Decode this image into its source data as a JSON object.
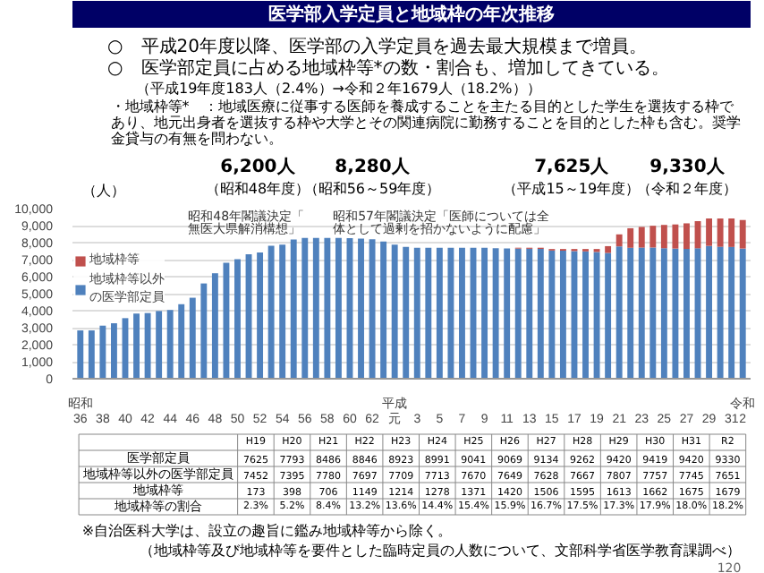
{
  "chart_data": {
    "type": "bar",
    "stacked": true,
    "title": "医学部入学定員と地域枠の年次推移",
    "ylabel": "（人）",
    "categories": [
      "36",
      null,
      "38",
      null,
      "40",
      null,
      "42",
      null,
      "44",
      null,
      "46",
      null,
      "48",
      null,
      "50",
      null,
      "52",
      null,
      "54",
      null,
      "56",
      null,
      "58",
      null,
      "60",
      null,
      "62",
      null,
      "元",
      null,
      "3",
      null,
      "5",
      null,
      "7",
      null,
      "9",
      null,
      "11",
      null,
      "13",
      null,
      "15",
      null,
      "17",
      null,
      "19",
      null,
      "21",
      null,
      "23",
      null,
      "25",
      null,
      "27",
      null,
      "29",
      null,
      "31",
      "2"
    ],
    "series": [
      {
        "name": "地域枠等以外の医学部定員",
        "color": "#4f81bd",
        "values": [
          2840,
          2840,
          3120,
          3260,
          3560,
          3830,
          3860,
          3980,
          4040,
          4380,
          4760,
          5600,
          6200,
          6820,
          7020,
          7320,
          7420,
          7820,
          7880,
          8180,
          8280,
          8280,
          8280,
          8280,
          8260,
          8240,
          8200,
          8070,
          7880,
          7750,
          7700,
          7700,
          7700,
          7700,
          7700,
          7700,
          7700,
          7670,
          7660,
          7650,
          7640,
          7630,
          7535,
          7525,
          7505,
          7485,
          7452,
          7395,
          7780,
          7697,
          7709,
          7713,
          7670,
          7649,
          7628,
          7667,
          7807,
          7757,
          7745,
          7651
        ]
      },
      {
        "name": "地域枠等",
        "color": "#c0504d",
        "values": [
          0,
          0,
          0,
          0,
          0,
          0,
          0,
          0,
          0,
          0,
          0,
          0,
          0,
          0,
          0,
          0,
          0,
          0,
          0,
          0,
          0,
          0,
          0,
          0,
          0,
          0,
          0,
          0,
          0,
          0,
          0,
          0,
          0,
          0,
          0,
          0,
          0,
          null,
          null,
          50,
          60,
          70,
          90,
          100,
          120,
          140,
          173,
          398,
          706,
          1149,
          1214,
          1278,
          1371,
          1420,
          1506,
          1595,
          1613,
          1662,
          1675,
          1679
        ]
      }
    ],
    "ylim": [
      0,
      10000
    ],
    "yticks": [
      0,
      {
        "value": 1000,
        "label": "1,000"
      },
      {
        "value": 2000,
        "label": "2,000"
      },
      {
        "value": 3000,
        "label": "3,000"
      },
      {
        "value": 4000,
        "label": "4,000"
      },
      {
        "value": 5000,
        "label": "5,000"
      },
      {
        "value": 6000,
        "label": "6,000"
      },
      {
        "value": 7000,
        "label": "7,000"
      },
      {
        "value": 8000,
        "label": "8,000"
      },
      {
        "value": 9000,
        "label": "9,000"
      },
      {
        "value": 10000,
        "label": "10,000"
      }
    ],
    "grid": "y",
    "legend": "left",
    "annotations": [
      "○　平成20年度以降、医学部の入学定員を過去最大規模まで増員。",
      "○　医学部定員に占める地域枠等*の数・割合も、増加してきている。",
      "（平成19年度183人（2.4%）→令和２年1679人（18.2%））",
      "・地域枠等*　：地域医療に従事する医師を養成することを主たる目的とした学生を選抜する枠であり、地元出身者を選抜する枠や大学とその関連病院に勤務することを目的とした枠も含む。奨学金貸与の有無を問わない。",
      "昭和48年閣議決定「無医大県解消構想」",
      "昭和57年閣議決定「医師については全体として過剰を招かないように配慮」",
      "6,200人",
      "（昭和48年度）",
      "8,280人",
      "（昭和56～59年度）",
      "7,625人",
      "（平成15～19年度）",
      "9,330人",
      "（令和２年度）",
      "昭和",
      "平成",
      "令和",
      "医学部定員",
      "地域枠等以外の医学部定員",
      "地域枠等",
      "地域枠等の割合",
      "H19",
      "H20",
      "H21",
      "H22",
      "H23",
      "H24",
      "H25",
      "H26",
      "H27",
      "H28",
      "H29",
      "H30",
      "H31",
      "R2",
      "7625",
      "7793",
      "8486",
      "8846",
      "8923",
      "8991",
      "9041",
      "9069",
      "9134",
      "9262",
      "9420",
      "9419",
      "9420",
      "9330",
      "7452",
      "7395",
      "7780",
      "7697",
      "7709",
      "7713",
      "7670",
      "7649",
      "7628",
      "7667",
      "7807",
      "7757",
      "7745",
      "7651",
      "173",
      "398",
      "706",
      "1149",
      "1214",
      "1278",
      "1371",
      "1420",
      "1506",
      "1595",
      "1613",
      "1662",
      "1675",
      "1679",
      "2.3%",
      "5.2%",
      "8.4%",
      "13.2%",
      "13.6%",
      "14.4%",
      "15.4%",
      "15.9%",
      "16.7%",
      "17.5%",
      "17.3%",
      "17.9%",
      "18.0%",
      "18.2%",
      "※自治医科大学は、設立の趣旨に鑑み地域枠等から除く。",
      "（地域枠等及び地域枠等を要件とした臨時定員の人数について、文部科学省医学教育課調べ）",
      "120"
    ]
  }
}
